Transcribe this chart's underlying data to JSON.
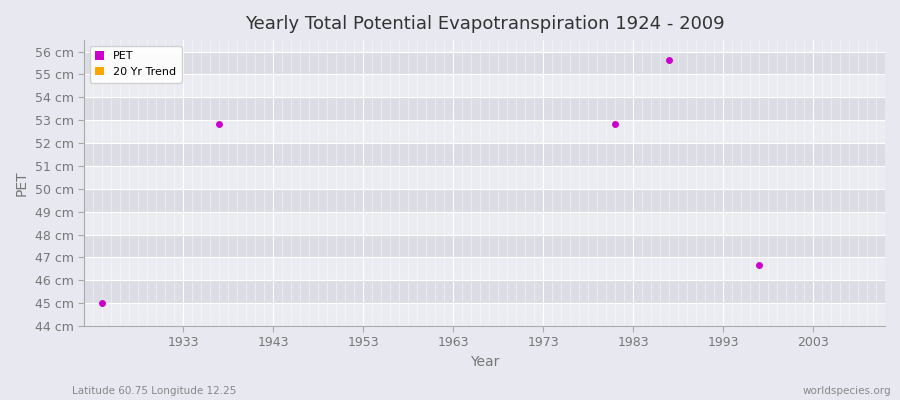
{
  "title": "Yearly Total Potential Evapotranspiration 1924 - 2009",
  "xlabel": "Year",
  "ylabel": "PET",
  "subtitle_left": "Latitude 60.75 Longitude 12.25",
  "subtitle_right": "worldspecies.org",
  "ylim": [
    44,
    56.5
  ],
  "yticks": [
    44,
    45,
    46,
    47,
    48,
    49,
    50,
    51,
    52,
    53,
    54,
    55,
    56
  ],
  "xlim": [
    1922,
    2011
  ],
  "xticks": [
    1933,
    1943,
    1953,
    1963,
    1973,
    1983,
    1993,
    2003
  ],
  "pet_years": [
    1924,
    1937,
    1981,
    1987,
    1997
  ],
  "pet_values": [
    45.0,
    52.85,
    52.85,
    55.65,
    46.65
  ],
  "pet_color": "#cc00cc",
  "trend_color": "#ffa500",
  "fig_bg_color": "#e8e8f0",
  "plot_bg_color": "#e8e8f0",
  "band_light": "#ebebf2",
  "band_dark": "#dcdce4",
  "grid_color": "#ffffff",
  "legend_labels": [
    "PET",
    "20 Yr Trend"
  ],
  "marker_size": 5,
  "tick_color": "#999999",
  "label_color": "#777777",
  "title_color": "#333333",
  "spine_color": "#cccccc"
}
